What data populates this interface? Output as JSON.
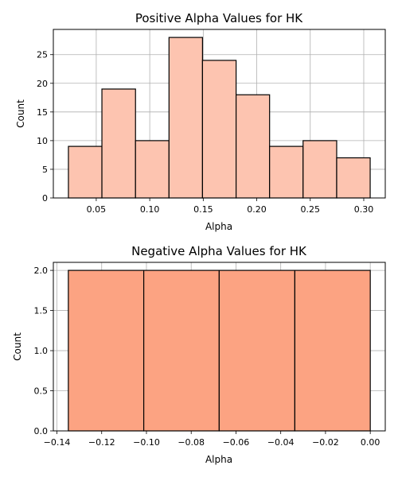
{
  "chart_data": [
    {
      "type": "histogram",
      "title": "Positive Alpha Values for HK",
      "xlabel": "Alpha",
      "ylabel": "Count",
      "bin_edges": [
        0.024,
        0.0553,
        0.0867,
        0.118,
        0.1493,
        0.1807,
        0.212,
        0.2433,
        0.2747,
        0.306
      ],
      "counts": [
        9,
        19,
        10,
        28,
        24,
        18,
        9,
        10,
        7
      ],
      "xlim": [
        0.0099,
        0.3201
      ],
      "ylim": [
        0,
        29.4
      ],
      "xticks": [
        0.05,
        0.1,
        0.15,
        0.2,
        0.25,
        0.3
      ],
      "xtick_labels": [
        "0.05",
        "0.10",
        "0.15",
        "0.20",
        "0.25",
        "0.30"
      ],
      "yticks": [
        0,
        5,
        10,
        15,
        20,
        25
      ],
      "ytick_labels": [
        "0",
        "5",
        "10",
        "15",
        "20",
        "25"
      ],
      "bar_color": "#fdc4b0",
      "edge_color": "#000000",
      "grid": true
    },
    {
      "type": "histogram",
      "title": "Negative Alpha Values for HK",
      "xlabel": "Alpha",
      "ylabel": "Count",
      "bin_edges": [
        -0.1349,
        -0.1012,
        -0.0675,
        -0.0337,
        0.0
      ],
      "counts": [
        2,
        2,
        2,
        2
      ],
      "xlim": [
        -0.1416,
        0.0067
      ],
      "ylim": [
        0,
        2.1
      ],
      "xticks": [
        -0.14,
        -0.12,
        -0.1,
        -0.08,
        -0.06,
        -0.04,
        -0.02,
        0.0
      ],
      "xtick_labels": [
        "−0.14",
        "−0.12",
        "−0.10",
        "−0.08",
        "−0.06",
        "−0.04",
        "−0.02",
        "0.00"
      ],
      "yticks": [
        0,
        0.5,
        1.0,
        1.5,
        2.0
      ],
      "ytick_labels": [
        "0.0",
        "0.5",
        "1.0",
        "1.5",
        "2.0"
      ],
      "bar_color": "#fca382",
      "edge_color": "#000000",
      "grid": true
    }
  ]
}
